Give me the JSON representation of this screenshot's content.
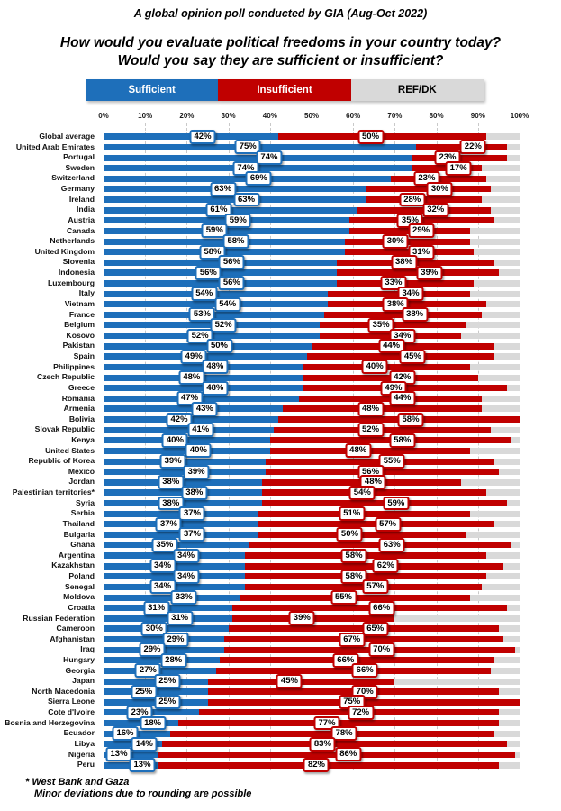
{
  "chart_data": {
    "type": "bar",
    "orientation": "horizontal",
    "stacked": true,
    "subtitle": "A global opinion poll conducted by GIA (Aug-Oct 2022)",
    "title": "How would you evaluate political freedoms in your country today?  Would you say they are sufficient or insufficient?",
    "legend": {
      "position": "top",
      "entries": [
        {
          "label": "Sufficient",
          "color": "#1E6FBA",
          "text_color": "#FFFFFF"
        },
        {
          "label": "Insufficient",
          "color": "#C00000",
          "text_color": "#FFFFFF"
        },
        {
          "label": "REF/DK",
          "color": "#D9D9D9",
          "text_color": "#000000"
        }
      ]
    },
    "x_axis": {
      "min": 0,
      "max": 100,
      "ticks": [
        "0%",
        "10%",
        "20%",
        "30%",
        "40%",
        "50%",
        "60%",
        "70%",
        "80%",
        "90%",
        "100%"
      ],
      "grid": "dashed"
    },
    "series": [
      "Sufficient",
      "Insufficient",
      "REF/DK"
    ],
    "value_label_format": "{value}%",
    "rows": [
      {
        "country": "Global average",
        "sufficient": 42,
        "insufficient": 50,
        "ref_dk": 8
      },
      {
        "country": "United Arab Emirates",
        "sufficient": 75,
        "insufficient": 22,
        "ref_dk": 3
      },
      {
        "country": "Portugal",
        "sufficient": 74,
        "insufficient": 23,
        "ref_dk": 3
      },
      {
        "country": "Sweden",
        "sufficient": 74,
        "insufficient": 17,
        "ref_dk": 9
      },
      {
        "country": "Switzerland",
        "sufficient": 69,
        "insufficient": 23,
        "ref_dk": 8
      },
      {
        "country": "Germany",
        "sufficient": 63,
        "insufficient": 30,
        "ref_dk": 7
      },
      {
        "country": "Ireland",
        "sufficient": 63,
        "insufficient": 28,
        "ref_dk": 9
      },
      {
        "country": "India",
        "sufficient": 61,
        "insufficient": 32,
        "ref_dk": 7
      },
      {
        "country": "Austria",
        "sufficient": 59,
        "insufficient": 35,
        "ref_dk": 6
      },
      {
        "country": "Canada",
        "sufficient": 59,
        "insufficient": 29,
        "ref_dk": 12
      },
      {
        "country": "Netherlands",
        "sufficient": 58,
        "insufficient": 30,
        "ref_dk": 12
      },
      {
        "country": "United Kingdom",
        "sufficient": 58,
        "insufficient": 31,
        "ref_dk": 11
      },
      {
        "country": "Slovenia",
        "sufficient": 56,
        "insufficient": 38,
        "ref_dk": 6
      },
      {
        "country": "Indonesia",
        "sufficient": 56,
        "insufficient": 39,
        "ref_dk": 5
      },
      {
        "country": "Luxembourg",
        "sufficient": 56,
        "insufficient": 33,
        "ref_dk": 11
      },
      {
        "country": "Italy",
        "sufficient": 54,
        "insufficient": 34,
        "ref_dk": 12
      },
      {
        "country": "Vietnam",
        "sufficient": 54,
        "insufficient": 38,
        "ref_dk": 8
      },
      {
        "country": "France",
        "sufficient": 53,
        "insufficient": 38,
        "ref_dk": 9
      },
      {
        "country": "Belgium",
        "sufficient": 52,
        "insufficient": 35,
        "ref_dk": 13
      },
      {
        "country": "Kosovo",
        "sufficient": 52,
        "insufficient": 34,
        "ref_dk": 14
      },
      {
        "country": "Pakistan",
        "sufficient": 50,
        "insufficient": 44,
        "ref_dk": 6
      },
      {
        "country": "Spain",
        "sufficient": 49,
        "insufficient": 45,
        "ref_dk": 6
      },
      {
        "country": "Philippines",
        "sufficient": 48,
        "insufficient": 40,
        "ref_dk": 12
      },
      {
        "country": "Czech Republic",
        "sufficient": 48,
        "insufficient": 42,
        "ref_dk": 10
      },
      {
        "country": "Greece",
        "sufficient": 48,
        "insufficient": 49,
        "ref_dk": 3
      },
      {
        "country": "Romania",
        "sufficient": 47,
        "insufficient": 44,
        "ref_dk": 9
      },
      {
        "country": "Armenia",
        "sufficient": 43,
        "insufficient": 48,
        "ref_dk": 9
      },
      {
        "country": "Bolivia",
        "sufficient": 42,
        "insufficient": 58,
        "ref_dk": 0
      },
      {
        "country": "Slovak Republic",
        "sufficient": 41,
        "insufficient": 52,
        "ref_dk": 7
      },
      {
        "country": "Kenya",
        "sufficient": 40,
        "insufficient": 58,
        "ref_dk": 2
      },
      {
        "country": "United States",
        "sufficient": 40,
        "insufficient": 48,
        "ref_dk": 12
      },
      {
        "country": "Republic of Korea",
        "sufficient": 39,
        "insufficient": 55,
        "ref_dk": 6
      },
      {
        "country": "Mexico",
        "sufficient": 39,
        "insufficient": 56,
        "ref_dk": 5
      },
      {
        "country": "Jordan",
        "sufficient": 38,
        "insufficient": 48,
        "ref_dk": 14
      },
      {
        "country": "Palestinian territories*",
        "sufficient": 38,
        "insufficient": 54,
        "ref_dk": 8
      },
      {
        "country": "Syria",
        "sufficient": 38,
        "insufficient": 59,
        "ref_dk": 3
      },
      {
        "country": "Serbia",
        "sufficient": 37,
        "insufficient": 51,
        "ref_dk": 12
      },
      {
        "country": "Thailand",
        "sufficient": 37,
        "insufficient": 57,
        "ref_dk": 6
      },
      {
        "country": "Bulgaria",
        "sufficient": 37,
        "insufficient": 50,
        "ref_dk": 13
      },
      {
        "country": "Ghana",
        "sufficient": 35,
        "insufficient": 63,
        "ref_dk": 2
      },
      {
        "country": "Argentina",
        "sufficient": 34,
        "insufficient": 58,
        "ref_dk": 8
      },
      {
        "country": "Kazakhstan",
        "sufficient": 34,
        "insufficient": 62,
        "ref_dk": 4
      },
      {
        "country": "Poland",
        "sufficient": 34,
        "insufficient": 58,
        "ref_dk": 8
      },
      {
        "country": "Senegal",
        "sufficient": 34,
        "insufficient": 57,
        "ref_dk": 9
      },
      {
        "country": "Moldova",
        "sufficient": 33,
        "insufficient": 55,
        "ref_dk": 12
      },
      {
        "country": "Croatia",
        "sufficient": 31,
        "insufficient": 66,
        "ref_dk": 3
      },
      {
        "country": "Russian Federation",
        "sufficient": 31,
        "insufficient": 39,
        "ref_dk": 30
      },
      {
        "country": "Cameroon",
        "sufficient": 30,
        "insufficient": 65,
        "ref_dk": 5
      },
      {
        "country": "Afghanistan",
        "sufficient": 29,
        "insufficient": 67,
        "ref_dk": 4
      },
      {
        "country": "Iraq",
        "sufficient": 29,
        "insufficient": 70,
        "ref_dk": 1
      },
      {
        "country": "Hungary",
        "sufficient": 28,
        "insufficient": 66,
        "ref_dk": 6
      },
      {
        "country": "Georgia",
        "sufficient": 27,
        "insufficient": 66,
        "ref_dk": 7
      },
      {
        "country": "Japan",
        "sufficient": 25,
        "insufficient": 45,
        "ref_dk": 30
      },
      {
        "country": "North Macedonia",
        "sufficient": 25,
        "insufficient": 70,
        "ref_dk": 5
      },
      {
        "country": "Sierra Leone",
        "sufficient": 25,
        "insufficient": 75,
        "ref_dk": 0
      },
      {
        "country": "Cote d'Ivoire",
        "sufficient": 23,
        "insufficient": 72,
        "ref_dk": 5
      },
      {
        "country": "Bosnia and Herzegovina",
        "sufficient": 18,
        "insufficient": 77,
        "ref_dk": 5
      },
      {
        "country": "Ecuador",
        "sufficient": 16,
        "insufficient": 78,
        "ref_dk": 6
      },
      {
        "country": "Libya",
        "sufficient": 14,
        "insufficient": 83,
        "ref_dk": 3
      },
      {
        "country": "Nigeria",
        "sufficient": 13,
        "insufficient": 86,
        "ref_dk": 1
      },
      {
        "country": "Peru",
        "sufficient": 13,
        "insufficient": 82,
        "ref_dk": 5
      }
    ],
    "footnotes": [
      "* West Bank and Gaza",
      "Minor deviations due to rounding are possible"
    ]
  }
}
